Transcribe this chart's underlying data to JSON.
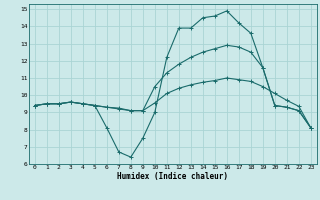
{
  "title": "",
  "xlabel": "Humidex (Indice chaleur)",
  "bg_color": "#cce9e9",
  "grid_color": "#aad4d4",
  "line_color": "#1a6b6b",
  "xlim": [
    -0.5,
    23.5
  ],
  "ylim": [
    6,
    15.3
  ],
  "xticks": [
    0,
    1,
    2,
    3,
    4,
    5,
    6,
    7,
    8,
    9,
    10,
    11,
    12,
    13,
    14,
    15,
    16,
    17,
    18,
    19,
    20,
    21,
    22,
    23
  ],
  "yticks": [
    6,
    7,
    8,
    9,
    10,
    11,
    12,
    13,
    14,
    15
  ],
  "line1_x": [
    0,
    1,
    2,
    3,
    4,
    5,
    6,
    7,
    8,
    9,
    10,
    11,
    12,
    13,
    14,
    15,
    16,
    17,
    18,
    19,
    20,
    21,
    22,
    23
  ],
  "line1_y": [
    9.4,
    9.5,
    9.5,
    9.6,
    9.5,
    9.4,
    8.1,
    6.7,
    6.4,
    7.5,
    9.0,
    12.2,
    13.9,
    13.9,
    14.5,
    14.6,
    14.9,
    14.2,
    13.6,
    11.6,
    9.4,
    9.3,
    9.1,
    8.1
  ],
  "line2_x": [
    0,
    1,
    2,
    3,
    4,
    5,
    6,
    7,
    8,
    9,
    10,
    11,
    12,
    13,
    14,
    15,
    16,
    17,
    18,
    19,
    20,
    21,
    22,
    23
  ],
  "line2_y": [
    9.4,
    9.5,
    9.5,
    9.6,
    9.5,
    9.4,
    9.3,
    9.25,
    9.1,
    9.1,
    9.55,
    10.1,
    10.4,
    10.6,
    10.75,
    10.85,
    11.0,
    10.9,
    10.8,
    10.5,
    10.1,
    9.7,
    9.35,
    8.1
  ],
  "line3_x": [
    0,
    1,
    2,
    3,
    4,
    5,
    6,
    7,
    8,
    9,
    10,
    11,
    12,
    13,
    14,
    15,
    16,
    17,
    18,
    19,
    20,
    21,
    22,
    23
  ],
  "line3_y": [
    9.4,
    9.5,
    9.5,
    9.6,
    9.5,
    9.4,
    9.3,
    9.2,
    9.1,
    9.1,
    10.5,
    11.3,
    11.8,
    12.2,
    12.5,
    12.7,
    12.9,
    12.8,
    12.5,
    11.6,
    9.4,
    9.3,
    9.1,
    8.1
  ]
}
